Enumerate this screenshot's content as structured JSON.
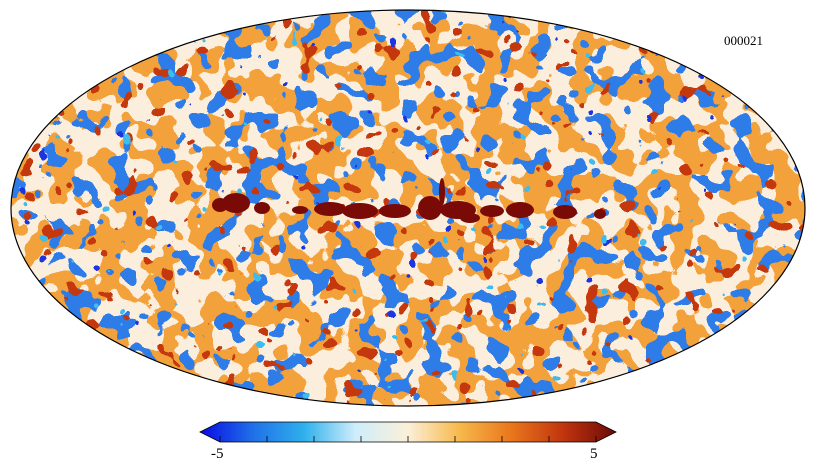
{
  "map": {
    "id_label": "000021",
    "projection": "mollweide"
  },
  "colorbar": {
    "min_label": "-5",
    "max_label": "5",
    "min_value": -5,
    "max_value": 5,
    "tick_count": 9,
    "colors": [
      "#0a0ae6",
      "#1f6fe8",
      "#2fb0ec",
      "#cfeefb",
      "#fbf0d8",
      "#f7b84a",
      "#e9751b",
      "#c0340e",
      "#6a0a08"
    ]
  },
  "colors": {
    "deep_blue": "#1a36e0",
    "mid_blue": "#2f7ce8",
    "cyan": "#3dbcef",
    "pale": "#fbeedd",
    "orange": "#f3a23a",
    "red": "#c5390f",
    "dark_red": "#7a0a06"
  }
}
